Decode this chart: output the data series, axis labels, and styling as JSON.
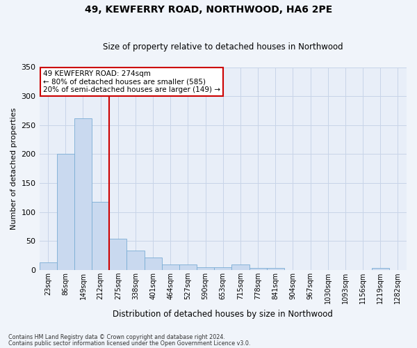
{
  "title": "49, KEWFERRY ROAD, NORTHWOOD, HA6 2PE",
  "subtitle": "Size of property relative to detached houses in Northwood",
  "xlabel": "Distribution of detached houses by size in Northwood",
  "ylabel": "Number of detached properties",
  "categories": [
    "23sqm",
    "86sqm",
    "149sqm",
    "212sqm",
    "275sqm",
    "338sqm",
    "401sqm",
    "464sqm",
    "527sqm",
    "590sqm",
    "653sqm",
    "715sqm",
    "778sqm",
    "841sqm",
    "904sqm",
    "967sqm",
    "1030sqm",
    "1093sqm",
    "1156sqm",
    "1219sqm",
    "1282sqm"
  ],
  "bar_heights": [
    13,
    200,
    262,
    118,
    54,
    34,
    21,
    10,
    9,
    5,
    5,
    9,
    4,
    4,
    0,
    0,
    0,
    0,
    0,
    3,
    0
  ],
  "bar_color": "#c9d9ef",
  "bar_edge_color": "#7aadd4",
  "vline_color": "#cc0000",
  "annotation_title": "49 KEWFERRY ROAD: 274sqm",
  "annotation_line1": "← 80% of detached houses are smaller (585)",
  "annotation_line2": "20% of semi-detached houses are larger (149) →",
  "annotation_box_color": "#cc0000",
  "ylim": [
    0,
    350
  ],
  "yticks": [
    0,
    50,
    100,
    150,
    200,
    250,
    300,
    350
  ],
  "grid_color": "#c8d4e8",
  "bg_color": "#e8eef8",
  "fig_bg_color": "#f0f4fa",
  "footnote1": "Contains HM Land Registry data © Crown copyright and database right 2024.",
  "footnote2": "Contains public sector information licensed under the Open Government Licence v3.0."
}
